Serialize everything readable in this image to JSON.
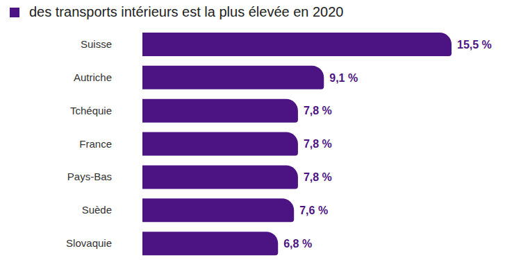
{
  "chart_data": {
    "type": "bar",
    "orientation": "horizontal",
    "title": "des transports intérieurs est la plus élevée en 2020",
    "categories": [
      "Suisse",
      "Autriche",
      "Tchéquie",
      "France",
      "Pays-Bas",
      "Suède",
      "Slovaquie"
    ],
    "values": [
      15.5,
      9.1,
      7.8,
      7.8,
      7.8,
      7.6,
      6.8
    ],
    "value_labels": [
      "15,5 %",
      "9,1 %",
      "7,8 %",
      "7,8 %",
      "7,8 %",
      "7,6 %",
      "6,8 %"
    ],
    "color": "#4b1482",
    "xlim": [
      0,
      15.5
    ],
    "data_labels": true,
    "tick_labels": "y",
    "grid": false
  }
}
